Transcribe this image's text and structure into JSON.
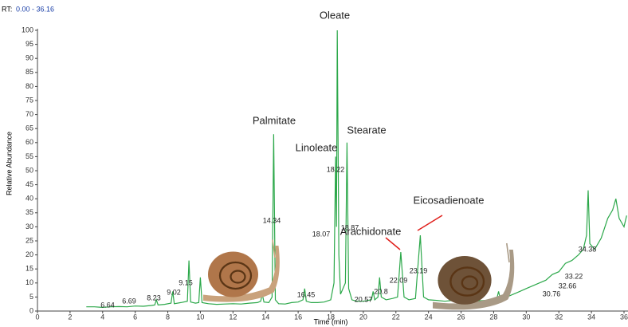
{
  "chart_data": {
    "type": "line",
    "rt_prefix": "RT:",
    "rt_range": "0.00 - 36.16",
    "x_label": "Time (min)",
    "y_label": "Relative Abundance",
    "xlim": [
      0,
      36
    ],
    "ylim": [
      0,
      100
    ],
    "xticks": [
      0,
      2,
      4,
      6,
      8,
      10,
      12,
      14,
      16,
      18,
      20,
      22,
      24,
      26,
      28,
      30,
      32,
      34,
      36
    ],
    "yticks": [
      0,
      5,
      10,
      15,
      20,
      25,
      30,
      35,
      40,
      45,
      50,
      55,
      60,
      65,
      70,
      75,
      80,
      85,
      90,
      95,
      100
    ],
    "x": [
      3.0,
      3.5,
      4.0,
      4.5,
      5.0,
      5.5,
      6.0,
      6.5,
      7.0,
      7.2,
      7.3,
      7.4,
      7.8,
      8.2,
      8.3,
      8.4,
      8.8,
      9.2,
      9.3,
      9.4,
      9.7,
      9.9,
      10.0,
      10.1,
      10.5,
      11,
      11.5,
      12,
      12.5,
      13,
      13.5,
      13.7,
      13.8,
      13.9,
      14.2,
      14.4,
      14.5,
      14.6,
      14.8,
      15.2,
      15.6,
      16,
      16.3,
      16.4,
      16.5,
      16.8,
      17.2,
      17.6,
      18.0,
      18.2,
      18.3,
      18.35,
      18.4,
      18.5,
      18.6,
      18.9,
      19.0,
      19.1,
      19.3,
      19.6,
      20,
      20.5,
      20.6,
      20.7,
      20.9,
      21.0,
      21.1,
      21.4,
      21.8,
      22.1,
      22.3,
      22.5,
      22.8,
      23.2,
      23.5,
      23.7,
      24,
      24.5,
      25,
      25.5,
      26,
      26.5,
      27,
      27.5,
      28,
      28.2,
      28.3,
      28.4,
      28.8,
      29.2,
      29.6,
      30,
      30.4,
      30.8,
      31.2,
      31.6,
      32,
      32.4,
      32.8,
      33.2,
      33.5,
      33.7,
      33.8,
      33.9,
      34.2,
      34.6,
      35,
      35.3,
      35.5,
      35.7,
      36,
      36.16
    ],
    "series": [
      {
        "color": "#2ca84a",
        "values": [
          1.5,
          1.5,
          1.3,
          1.5,
          1.6,
          1.5,
          1.8,
          1.7,
          2,
          2.2,
          4,
          2.2,
          2.4,
          2.8,
          7,
          2.6,
          3,
          3.5,
          18,
          3.2,
          2.8,
          3,
          12,
          3,
          2.6,
          2.4,
          2.5,
          2.6,
          2.5,
          2.8,
          3,
          3.5,
          6,
          3.2,
          3,
          5,
          63,
          4,
          2.6,
          2.5,
          3,
          3.2,
          4,
          8,
          3.5,
          3,
          3,
          3.2,
          4,
          10,
          55,
          30,
          100,
          20,
          6,
          10,
          60,
          8,
          4,
          3.5,
          3.5,
          4,
          7,
          4,
          5,
          12,
          5,
          4,
          4.5,
          5,
          21,
          5,
          4,
          4.5,
          27,
          5,
          4,
          3.8,
          3.5,
          3.8,
          4,
          4,
          3.6,
          3.8,
          4.5,
          4.5,
          7,
          4.5,
          5,
          6,
          7,
          8,
          9,
          10,
          11,
          13,
          14,
          17,
          18,
          20,
          22,
          27,
          43,
          24,
          22,
          26,
          33,
          36,
          40,
          33,
          30,
          34
        ]
      }
    ],
    "peak_labels": [
      6.64,
      6.69,
      8.23,
      9.02,
      9.15,
      14.34,
      16.45,
      18.07,
      18.22,
      18.87,
      20.57,
      20.8,
      22.09,
      23.19,
      30.76,
      32.66,
      33.22,
      34.38
    ],
    "compounds": [
      "Oleate",
      "Palmitate",
      "Linoleate",
      "Stearate",
      "Eicosadienoate",
      "Arachidonate"
    ]
  }
}
